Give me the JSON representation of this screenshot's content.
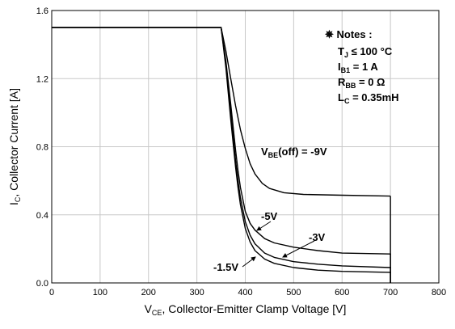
{
  "chart_data": {
    "type": "line",
    "xlabel": {
      "main": "V",
      "sub": "CE",
      "rest": ", Collector-Emitter Clamp Voltage [V]"
    },
    "ylabel": {
      "main": "I",
      "sub": "C",
      "rest": ", Collector Current [A]"
    },
    "xlim": [
      0,
      800
    ],
    "ylim": [
      0,
      1.6
    ],
    "x_ticks": [
      "0",
      "100",
      "200",
      "300",
      "400",
      "500",
      "600",
      "700",
      "800"
    ],
    "y_ticks": [
      "0.0",
      "0.4",
      "0.8",
      "1.2",
      "1.6"
    ],
    "grid": true,
    "notes": {
      "header": "✵ Notes :",
      "lines": [
        {
          "main": "T",
          "sub": "J",
          "rest": " ≤ 100 °C"
        },
        {
          "main": "I",
          "sub": "B1",
          "rest": " = 1 A"
        },
        {
          "main": "R",
          "sub": "BB",
          "rest": " = 0 Ω"
        },
        {
          "main": "L",
          "sub": "C",
          "rest": " = 0.35mH"
        }
      ]
    },
    "series": [
      {
        "name": "V_BE(off) = -9V",
        "x": [
          0,
          350,
          360,
          370,
          380,
          390,
          400,
          410,
          420,
          435,
          450,
          480,
          520,
          600,
          700
        ],
        "y": [
          1.5,
          1.5,
          1.36,
          1.2,
          1.04,
          0.9,
          0.79,
          0.7,
          0.64,
          0.585,
          0.555,
          0.53,
          0.52,
          0.515,
          0.51
        ]
      },
      {
        "name": "-5V",
        "x": [
          0,
          350,
          360,
          370,
          380,
          385,
          390,
          400,
          410,
          420,
          440,
          460,
          500,
          550,
          600,
          700
        ],
        "y": [
          1.5,
          1.5,
          1.3,
          1.05,
          0.78,
          0.66,
          0.56,
          0.42,
          0.35,
          0.31,
          0.26,
          0.235,
          0.21,
          0.19,
          0.175,
          0.17
        ]
      },
      {
        "name": "-3V",
        "x": [
          0,
          350,
          360,
          370,
          380,
          385,
          390,
          400,
          410,
          420,
          440,
          460,
          500,
          550,
          600,
          700
        ],
        "y": [
          1.5,
          1.5,
          1.28,
          1.0,
          0.72,
          0.6,
          0.5,
          0.36,
          0.28,
          0.23,
          0.175,
          0.15,
          0.125,
          0.11,
          0.1,
          0.09
        ]
      },
      {
        "name": "-1.5V",
        "x": [
          0,
          350,
          360,
          370,
          380,
          385,
          390,
          400,
          410,
          420,
          440,
          460,
          500,
          550,
          600,
          700
        ],
        "y": [
          1.5,
          1.5,
          1.26,
          0.96,
          0.68,
          0.56,
          0.46,
          0.32,
          0.24,
          0.19,
          0.14,
          0.115,
          0.09,
          0.075,
          0.068,
          0.062
        ]
      }
    ],
    "curve_labels": [
      {
        "main": "V",
        "sub": "BE",
        "rest": "(off) = -9V"
      },
      {
        "main": "-5V",
        "sub": "",
        "rest": ""
      },
      {
        "main": "-3V",
        "sub": "",
        "rest": ""
      },
      {
        "main": "-1.5V",
        "sub": "",
        "rest": ""
      }
    ],
    "line_color": "#000000",
    "grid_color": "#c8c8c8"
  }
}
